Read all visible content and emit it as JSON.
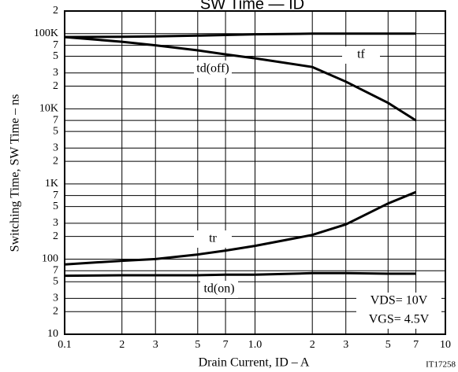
{
  "chart_data": {
    "type": "line",
    "title": "SW Time — ID",
    "x_label": "Drain Current, ID  –  A",
    "y_label": "Switching Time, SW Time  –  ns",
    "x": [
      0.1,
      0.2,
      0.3,
      0.5,
      0.7,
      1,
      2,
      3,
      5,
      7
    ],
    "series": [
      {
        "name": "tf",
        "color": "#000000",
        "values": [
          90000,
          91000,
          92000,
          94000,
          96000,
          98000,
          100000,
          100000,
          100000,
          100000
        ]
      },
      {
        "name": "td(off)",
        "color": "#000000",
        "values": [
          90000,
          78000,
          70000,
          60000,
          53000,
          47000,
          36000,
          23000,
          12000,
          7000
        ]
      },
      {
        "name": "tr",
        "color": "#000000",
        "values": [
          85,
          95,
          100,
          115,
          130,
          150,
          210,
          290,
          550,
          780
        ]
      },
      {
        "name": "td(on)",
        "color": "#000000",
        "values": [
          60,
          61,
          61,
          61,
          62,
          62,
          65,
          65,
          64,
          64
        ]
      }
    ],
    "xlim": [
      0.1,
      10
    ],
    "ylim": [
      10,
      200000
    ],
    "log_x": true,
    "log_y": true,
    "grid": true,
    "xticks": [
      0.1,
      {
        "value": 0.2,
        "label": "2"
      },
      {
        "value": 0.3,
        "label": "3"
      },
      {
        "value": 0.5,
        "label": "5"
      },
      {
        "value": 0.7,
        "label": "7"
      },
      {
        "value": 1,
        "label": "1.0"
      },
      2,
      3,
      5,
      7,
      10
    ],
    "yticks": [
      10,
      {
        "value": 20,
        "label": "2"
      },
      {
        "value": 30,
        "label": "3"
      },
      {
        "value": 50,
        "label": "5"
      },
      {
        "value": 70,
        "label": "7"
      },
      100,
      {
        "value": 200,
        "label": "2"
      },
      {
        "value": 300,
        "label": "3"
      },
      {
        "value": 500,
        "label": "5"
      },
      {
        "value": 700,
        "label": "7"
      },
      {
        "value": 1000,
        "label": "1K"
      },
      {
        "value": 2000,
        "label": "2"
      },
      {
        "value": 3000,
        "label": "3"
      },
      {
        "value": 5000,
        "label": "5"
      },
      {
        "value": 7000,
        "label": "7"
      },
      {
        "value": 10000,
        "label": "10K"
      },
      {
        "value": 20000,
        "label": "2"
      },
      {
        "value": 30000,
        "label": "3"
      },
      {
        "value": 50000,
        "label": "5"
      },
      {
        "value": 70000,
        "label": "7"
      },
      {
        "value": 100000,
        "label": "100K"
      },
      {
        "value": 200000,
        "label": "2"
      }
    ],
    "annotations": [
      "VDS= 10V",
      "VGS= 4.5V",
      "IT17258"
    ]
  }
}
